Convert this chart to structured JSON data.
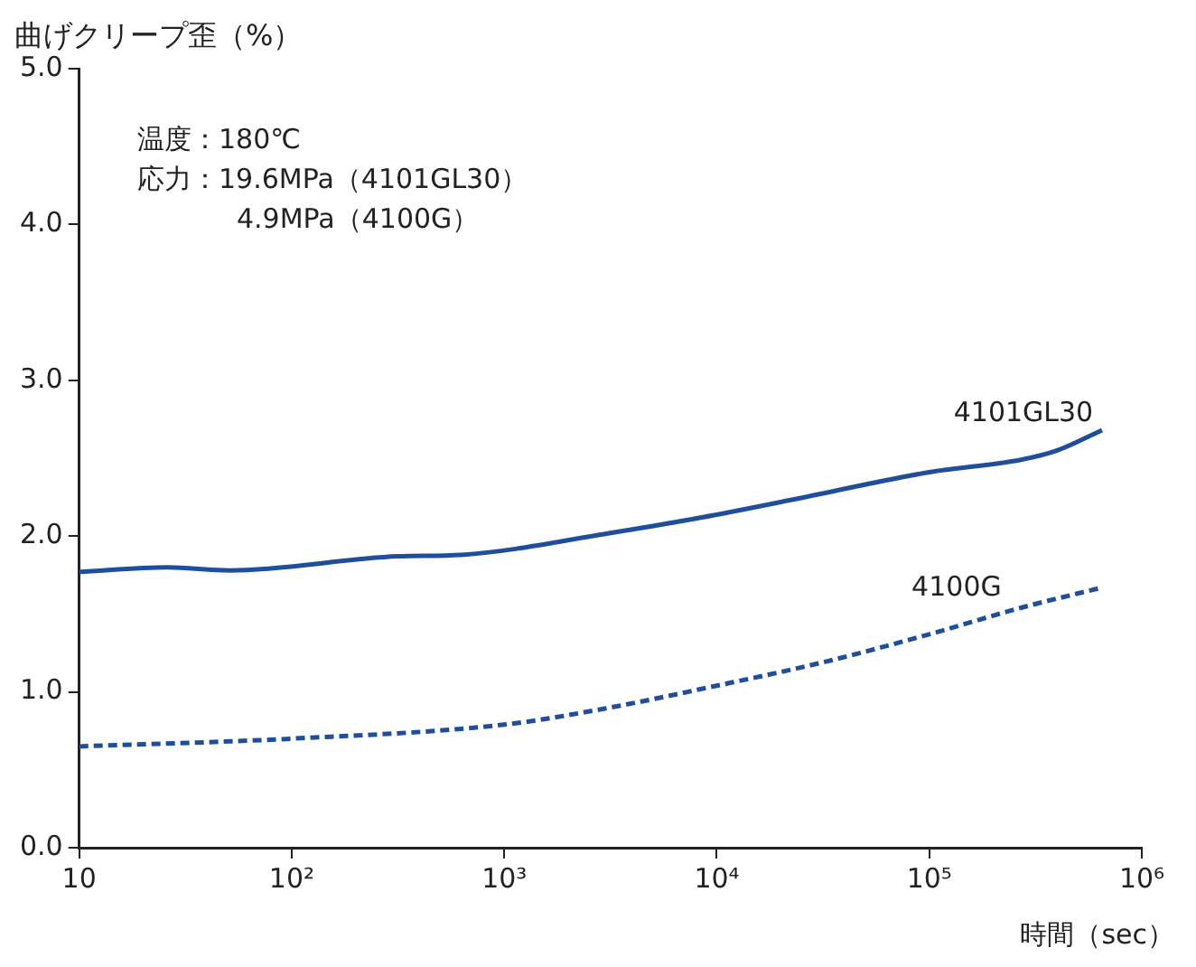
{
  "chart_data": {
    "type": "line",
    "ylabel": "曲げクリープ歪（%）",
    "xlabel": "時間（sec）",
    "annotations": [
      "温度：180℃",
      "応力：19.6MPa（4101GL30）",
      "4.9MPa（4100G）"
    ],
    "log": "x",
    "xlim": [
      10,
      1000000
    ],
    "xticks": [
      10,
      {
        "value": 100,
        "label": "10²"
      },
      {
        "value": 1000,
        "label": "10³"
      },
      {
        "value": 10000,
        "label": "10⁴"
      },
      {
        "value": 100000,
        "label": "10⁵"
      },
      {
        "value": 1000000,
        "label": "10⁶"
      }
    ],
    "ylim": [
      0,
      5
    ],
    "yticks": [
      {
        "value": 0,
        "label": "0.0"
      },
      {
        "value": 1,
        "label": "1.0"
      },
      {
        "value": 2,
        "label": "2.0"
      },
      {
        "value": 3,
        "label": "3.0"
      },
      {
        "value": 4,
        "label": "4.0"
      },
      {
        "value": 5,
        "label": "5.0"
      }
    ],
    "grid": false,
    "legend": false,
    "marker": "none",
    "series": [
      {
        "name": "4101GL30",
        "color": "#1f4e9c",
        "line_style": "solid",
        "x": [
          10,
          26,
          51,
          316,
          630,
          3160,
          8500,
          22000,
          100000,
          270000,
          400000,
          650000
        ],
        "values": [
          1.77,
          1.8,
          1.78,
          1.87,
          1.88,
          2.02,
          2.12,
          2.23,
          2.41,
          2.49,
          2.55,
          2.68
        ]
      },
      {
        "name": "4100G",
        "color": "#1f4e9c",
        "line_style": "dashed",
        "x": [
          10,
          100,
          1000,
          3160,
          10000,
          31600,
          100000,
          270000,
          650000
        ],
        "values": [
          0.65,
          0.7,
          0.79,
          0.9,
          1.04,
          1.19,
          1.37,
          1.54,
          1.67
        ]
      }
    ]
  }
}
